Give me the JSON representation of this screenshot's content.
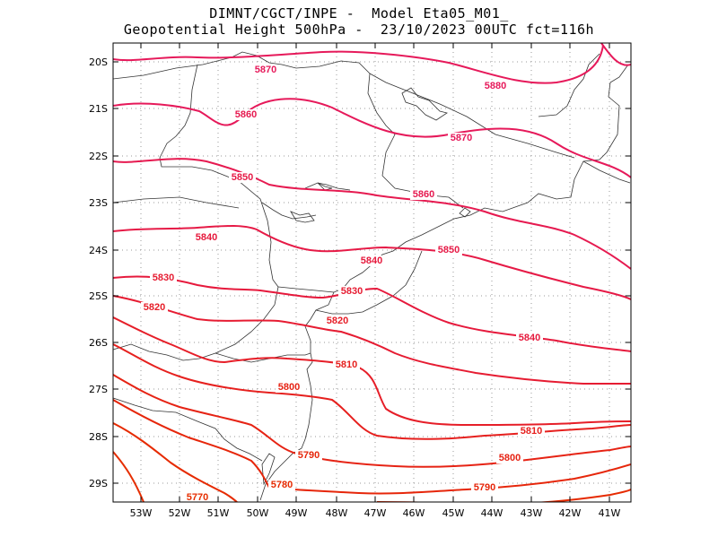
{
  "title": {
    "line1": "DIMNT/CGCT/INPE -  Model Eta05_M01_",
    "line2": "Geopotential Height 500hPa -  23/10/2023 00UTC fct=116h"
  },
  "axes": {
    "lat_labels": [
      "20S",
      "21S",
      "22S",
      "23S",
      "24S",
      "25S",
      "26S",
      "27S",
      "28S",
      "29S"
    ],
    "lon_labels": [
      "53W",
      "52W",
      "51W",
      "50W",
      "49W",
      "48W",
      "47W",
      "46W",
      "45W",
      "44W",
      "43W",
      "42W",
      "41W"
    ]
  },
  "contours": [
    {
      "value": 5880,
      "label": "5880",
      "color": "#e6195a"
    },
    {
      "value": 5870,
      "label": "5870",
      "color": "#e6195a"
    },
    {
      "value": 5860,
      "label": "5860",
      "color": "#e61a50"
    },
    {
      "value": 5850,
      "label": "5850",
      "color": "#e61a46"
    },
    {
      "value": 5840,
      "label": "5840",
      "color": "#e6193c"
    },
    {
      "value": 5830,
      "label": "5830",
      "color": "#e61c32"
    },
    {
      "value": 5820,
      "label": "5820",
      "color": "#e61e28"
    },
    {
      "value": 5810,
      "label": "5810",
      "color": "#e6201e"
    },
    {
      "value": 5800,
      "label": "5800",
      "color": "#e62314"
    },
    {
      "value": 5790,
      "label": "5790",
      "color": "#e6260a"
    },
    {
      "value": 5780,
      "label": "5780",
      "color": "#e62a00"
    },
    {
      "value": 5770,
      "label": "5770",
      "color": "#e62e00"
    }
  ],
  "map_style": {
    "frame_color": "#000000",
    "grid_color": "#9a9a9a",
    "coast_color": "#333333"
  }
}
